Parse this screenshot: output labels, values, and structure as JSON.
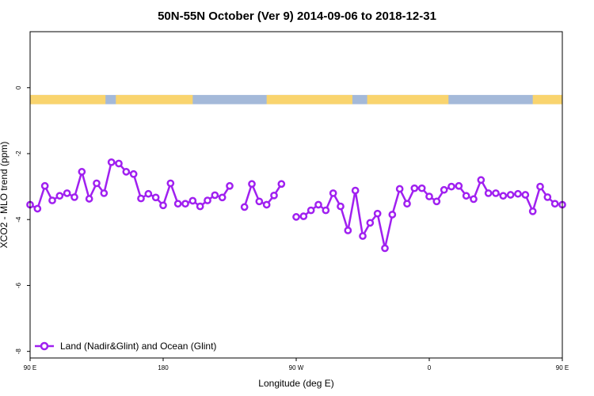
{
  "chart_data": {
    "type": "line",
    "title": "50N-55N October (Ver 9)   2014-09-06 to 2018-12-31",
    "xlabel": "Longitude (deg E)",
    "ylabel": "XCO2 - MLO trend (ppm)",
    "xlim": [
      90,
      450
    ],
    "ylim": [
      -8.2,
      1.7
    ],
    "x_ticks": [
      {
        "value": 90,
        "label": "90 E"
      },
      {
        "value": 180,
        "label": "180"
      },
      {
        "value": 270,
        "label": "90 W"
      },
      {
        "value": 360,
        "label": "0"
      },
      {
        "value": 450,
        "label": "90 E"
      },
      {
        "value": 540,
        "label": "180"
      }
    ],
    "y_ticks": [
      0,
      -2,
      -4,
      -6,
      -8
    ],
    "grid": false,
    "legend_position": "bottom-left",
    "land_ocean_strip": {
      "y_range": [
        -0.5,
        -0.22
      ],
      "ocean_color": "#a4b9d9",
      "land_color": "#f9d46e",
      "land_segments": [
        [
          90,
          141
        ],
        [
          148,
          200
        ],
        [
          250,
          308
        ],
        [
          318,
          373
        ],
        [
          430,
          450
        ]
      ]
    },
    "series": [
      {
        "name": "Land (Nadir&Glint) and Ocean (Glint)",
        "color": "#a020f0",
        "segments": [
          [
            [
              90,
              -3.55
            ],
            [
              95,
              -3.67
            ],
            [
              100,
              -2.98
            ],
            [
              105,
              -3.42
            ],
            [
              110,
              -3.28
            ],
            [
              115,
              -3.2
            ],
            [
              120,
              -3.32
            ],
            [
              125,
              -2.55
            ],
            [
              130,
              -3.37
            ],
            [
              135,
              -2.9
            ],
            [
              140,
              -3.2
            ],
            [
              145,
              -2.26
            ],
            [
              150,
              -2.3
            ],
            [
              155,
              -2.55
            ],
            [
              160,
              -2.62
            ],
            [
              165,
              -3.36
            ],
            [
              170,
              -3.22
            ],
            [
              175,
              -3.33
            ],
            [
              180,
              -3.57
            ],
            [
              185,
              -2.9
            ],
            [
              190,
              -3.52
            ],
            [
              195,
              -3.52
            ],
            [
              200,
              -3.43
            ],
            [
              205,
              -3.6
            ],
            [
              210,
              -3.42
            ],
            [
              215,
              -3.26
            ],
            [
              220,
              -3.33
            ],
            [
              225,
              -2.98
            ]
          ],
          [
            [
              235,
              -3.62
            ],
            [
              240,
              -2.92
            ],
            [
              245,
              -3.45
            ],
            [
              250,
              -3.55
            ],
            [
              255,
              -3.27
            ],
            [
              260,
              -2.92
            ]
          ],
          [
            [
              270,
              -3.92
            ],
            [
              275,
              -3.9
            ],
            [
              280,
              -3.72
            ],
            [
              285,
              -3.55
            ],
            [
              290,
              -3.72
            ],
            [
              295,
              -3.2
            ],
            [
              300,
              -3.6
            ],
            [
              305,
              -4.33
            ],
            [
              310,
              -3.12
            ],
            [
              315,
              -4.5
            ],
            [
              320,
              -4.1
            ],
            [
              325,
              -3.82
            ],
            [
              330,
              -4.87
            ],
            [
              335,
              -3.85
            ],
            [
              340,
              -3.07
            ],
            [
              345,
              -3.52
            ],
            [
              350,
              -3.05
            ],
            [
              355,
              -3.05
            ],
            [
              360,
              -3.3
            ],
            [
              365,
              -3.45
            ],
            [
              370,
              -3.1
            ],
            [
              375,
              -3.0
            ],
            [
              380,
              -2.98
            ],
            [
              385,
              -3.28
            ],
            [
              390,
              -3.38
            ],
            [
              395,
              -2.8
            ],
            [
              400,
              -3.2
            ],
            [
              405,
              -3.2
            ],
            [
              410,
              -3.28
            ],
            [
              415,
              -3.25
            ],
            [
              420,
              -3.22
            ],
            [
              425,
              -3.25
            ],
            [
              430,
              -3.75
            ],
            [
              435,
              -3.0
            ],
            [
              440,
              -3.32
            ],
            [
              445,
              -3.52
            ],
            [
              450,
              -3.55
            ]
          ]
        ]
      }
    ]
  }
}
